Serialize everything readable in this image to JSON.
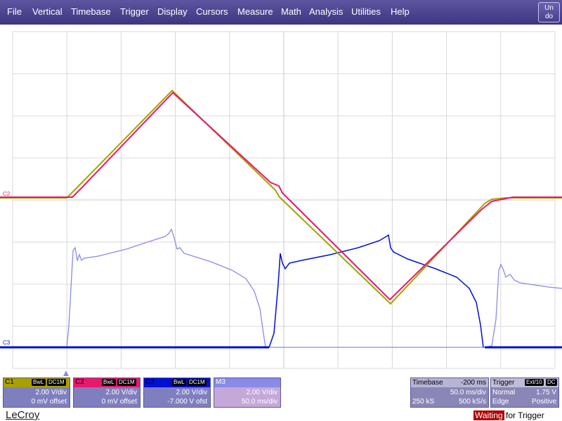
{
  "menu": {
    "items": [
      "File",
      "Vertical",
      "Timebase",
      "Trigger",
      "Display",
      "Cursors",
      "Measure",
      "Math",
      "Analysis",
      "Utilities",
      "Help"
    ],
    "undo_label_1": "Un",
    "undo_label_2": "do"
  },
  "markers": {
    "c2": "C2",
    "c3": "C3"
  },
  "colors": {
    "menu_bg": "#4a4290",
    "c1": "#a8a000",
    "c2": "#e8186c",
    "c3": "#0010d0",
    "m3": "#8a8ae8",
    "status_red": "#b00000"
  },
  "channels": [
    {
      "name": "C1",
      "tag1": "BwL",
      "tag2": "DC1M",
      "vdiv": "2.00 V/div",
      "offset": "0 mV offset",
      "color": "#a8a000"
    },
    {
      "name": "C2",
      "tag1": "BwL",
      "tag2": "DC1M",
      "vdiv": "2.00 V/div",
      "offset": "0 mV offset",
      "color": "#e8186c"
    },
    {
      "name": "C3",
      "tag1": "BwL",
      "tag2": "DC1M",
      "vdiv": "2.00 V/div",
      "offset": "-7.000 V ofst",
      "color": "#0010d0"
    },
    {
      "name": "M3",
      "tag1": "",
      "tag2": "",
      "vdiv": "2.00 V/div",
      "offset": "50.0 ms/div",
      "color": "#8a8ae8"
    }
  ],
  "timebase": {
    "label": "Timebase",
    "delay": "-200 ms",
    "tdiv": "50.0 ms/div",
    "samples": "250 kS",
    "rate": "500 kS/s"
  },
  "trigger": {
    "label": "Trigger",
    "source": "Ext/10",
    "coupling": "DC",
    "mode": "Normal",
    "level": "1.75 V",
    "type": "Edge",
    "slope": "Positive"
  },
  "brand": "LeCroy",
  "status": {
    "highlight": "Waiting",
    "rest": "for Trigger"
  }
}
